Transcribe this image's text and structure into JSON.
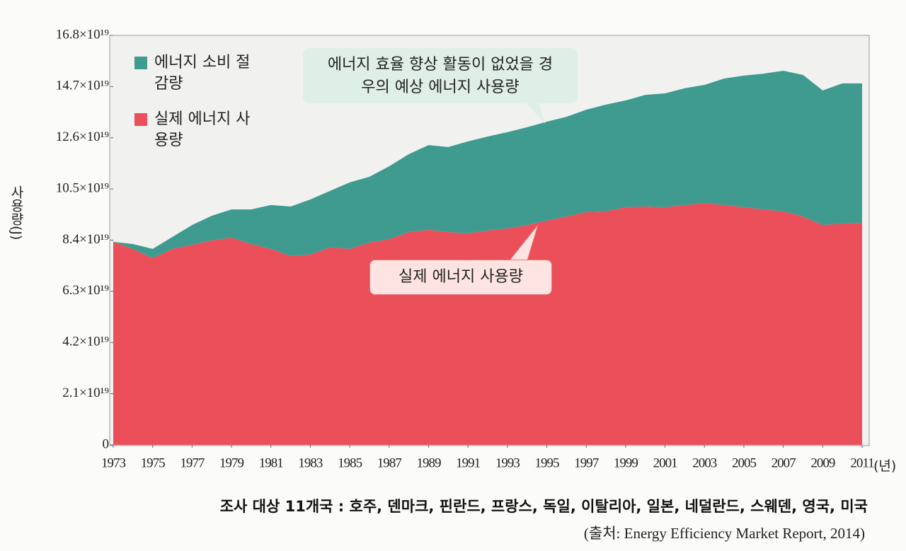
{
  "chart_data": {
    "type": "stacked_area",
    "ylabel": "사용량(J)",
    "xunit": "(년)",
    "note": "조사 대상 11개국 : 호주, 덴마크, 핀란드, 프랑스, 독일, 이탈리아, 일본, 네덜란드, 스웨덴, 영국, 미국",
    "source": "(출처: Energy Efficiency Market Report, 2014)",
    "annotations": [
      {
        "text": "에너지 효율 향상 활동이 없었을 경우의 예상 에너지 사용량"
      },
      {
        "text": "실제 에너지 사용량"
      }
    ],
    "x": [
      1973,
      1974,
      1975,
      1976,
      1977,
      1978,
      1979,
      1980,
      1981,
      1982,
      1983,
      1984,
      1985,
      1986,
      1987,
      1988,
      1989,
      1990,
      1991,
      1992,
      1993,
      1994,
      1995,
      1996,
      1997,
      1998,
      1999,
      2000,
      2001,
      2002,
      2003,
      2004,
      2005,
      2006,
      2007,
      2008,
      2009,
      2010,
      2011
    ],
    "series": [
      {
        "name": "실제 에너지 사용량",
        "color": "#ea4f5a",
        "values": [
          8.33,
          8.04,
          7.66,
          8.04,
          8.21,
          8.39,
          8.5,
          8.24,
          8.04,
          7.75,
          7.81,
          8.1,
          8.04,
          8.3,
          8.44,
          8.73,
          8.82,
          8.73,
          8.68,
          8.79,
          8.88,
          9.02,
          9.2,
          9.37,
          9.55,
          9.58,
          9.75,
          9.78,
          9.75,
          9.84,
          9.92,
          9.84,
          9.75,
          9.66,
          9.58,
          9.37,
          9.02,
          9.08,
          9.11
        ]
      },
      {
        "name": "에너지 소비 절감량",
        "color": "#3f9b90",
        "values": [
          0.0,
          0.2,
          0.38,
          0.49,
          0.81,
          1.01,
          1.16,
          1.42,
          1.8,
          2.03,
          2.26,
          2.32,
          2.73,
          2.7,
          2.99,
          3.2,
          3.48,
          3.49,
          3.77,
          3.86,
          3.95,
          4.01,
          4.06,
          4.09,
          4.2,
          4.38,
          4.38,
          4.58,
          4.67,
          4.79,
          4.85,
          5.19,
          5.4,
          5.57,
          5.77,
          5.81,
          5.52,
          5.75,
          5.72
        ]
      }
    ],
    "xlim": [
      1973,
      2011
    ],
    "xticks": [
      1973,
      1975,
      1977,
      1979,
      1981,
      1983,
      1985,
      1987,
      1989,
      1991,
      1993,
      1995,
      1997,
      1999,
      2001,
      2003,
      2005,
      2007,
      2009,
      2011
    ],
    "ylim": [
      0,
      16.8
    ],
    "yticks": [
      0,
      {
        "value": 2.1,
        "label": "2.1×10¹⁹"
      },
      {
        "value": 4.2,
        "label": "4.2×10¹⁹"
      },
      {
        "value": 6.3,
        "label": "6.3×10¹⁹"
      },
      {
        "value": 8.4,
        "label": "8.4×10¹⁹"
      },
      {
        "value": 10.5,
        "label": "10.5×10¹⁹"
      },
      {
        "value": 12.6,
        "label": "12.6×10¹⁹"
      },
      {
        "value": 14.7,
        "label": "14.7×10¹⁹"
      },
      {
        "value": 16.8,
        "label": "16.8×10¹⁹"
      }
    ]
  }
}
